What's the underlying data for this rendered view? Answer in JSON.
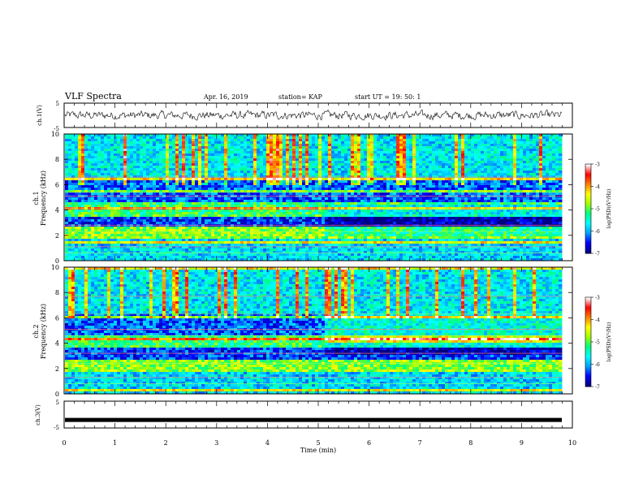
{
  "header": {
    "title": "VLF Spectra",
    "date": "Apr. 16, 2019",
    "station": "station= KAP",
    "start": "start UT =   19: 50: 1"
  },
  "chart_data": [
    {
      "type": "line",
      "panel": "ch1-waveform",
      "ylabel": "ch.1(V)",
      "ylim": [
        -5,
        5
      ],
      "yticks": [
        "5",
        "-5"
      ],
      "xlim": [
        0,
        9.85
      ],
      "description_values": "noisy waveform approx. amplitude within -2.5..2.5 V"
    },
    {
      "type": "heatmap",
      "panel": "ch1-spectrogram",
      "ylabel": "ch.1",
      "ylabel2": "Frequency  (kHz)",
      "ylim": [
        0,
        10
      ],
      "yticks": [
        "0",
        "2",
        "4",
        "6",
        "8",
        "10"
      ],
      "xlim": [
        0,
        9.85
      ],
      "colorbar": {
        "label": "log(PSD)(V²/Hz)",
        "range": [
          -7,
          -3
        ],
        "ticks": [
          "-3",
          "-4",
          "-5",
          "-6",
          "-7"
        ]
      }
    },
    {
      "type": "heatmap",
      "panel": "ch2-spectrogram",
      "ylabel": "ch.2",
      "ylabel2": "Frequency  (kHz)",
      "ylim": [
        0,
        10
      ],
      "yticks": [
        "0",
        "2",
        "4",
        "6",
        "8",
        "10"
      ],
      "xlim": [
        0,
        9.85
      ],
      "colorbar": {
        "label": "log(PSD)(V²/Hz)",
        "range": [
          -7,
          -3
        ],
        "ticks": [
          "-3",
          "-4",
          "-5",
          "-6",
          "-7"
        ]
      }
    },
    {
      "type": "line",
      "panel": "ch3-waveform",
      "ylabel": "ch.3(V)",
      "ylim": [
        -5,
        5
      ],
      "yticks": [
        "5",
        "-5"
      ],
      "constant_value": -2,
      "xlim": [
        0,
        9.85
      ]
    }
  ],
  "xaxis": {
    "label": "Time  (min)",
    "ticks": [
      "0",
      "1",
      "2",
      "3",
      "4",
      "5",
      "6",
      "7",
      "8",
      "9",
      "10"
    ],
    "range": [
      0,
      10
    ]
  },
  "colors": {
    "cmap": [
      "#000080",
      "#0000ff",
      "#00a0ff",
      "#00ffff",
      "#00ff80",
      "#a0ff00",
      "#ffff00",
      "#ff8000",
      "#ff0000",
      "#ffffff"
    ]
  }
}
